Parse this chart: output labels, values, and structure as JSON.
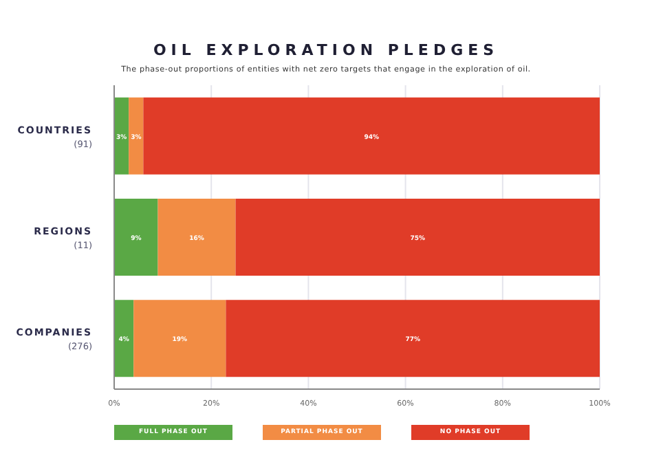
{
  "chart_data": {
    "type": "bar",
    "orientation": "horizontal",
    "stacked": true,
    "title": "OIL EXPLORATION PLEDGES",
    "subtitle": "The phase-out proportions of entities with net zero targets that engage in the exploration of oil.",
    "categories": [
      "COUNTRIES (91)",
      "REGIONS (11)",
      "COMPANIES (276)"
    ],
    "series": [
      {
        "name": "FULL PHASE OUT",
        "color": "#5aa845",
        "values": [
          3,
          9,
          4
        ],
        "value_labels": [
          "3%",
          "9%",
          "4%"
        ]
      },
      {
        "name": "PARTIAL PHASE OUT",
        "color": "#f28c44",
        "values": [
          3,
          16,
          19
        ],
        "value_labels": [
          "3%",
          "16%",
          "19%"
        ]
      },
      {
        "name": "NO PHASE OUT",
        "color": "#e03c28",
        "values": [
          94,
          75,
          77
        ],
        "value_labels": [
          "94%",
          "75%",
          "77%"
        ]
      }
    ],
    "xlim": [
      0,
      100
    ],
    "xticks": [
      {
        "value": 0,
        "label": "0%"
      },
      {
        "value": 20,
        "label": "20%"
      },
      {
        "value": 40,
        "label": "40%"
      },
      {
        "value": 60,
        "label": "60%"
      },
      {
        "value": 80,
        "label": "80%"
      },
      {
        "value": 100,
        "label": "100%"
      }
    ],
    "grid": "x",
    "legend": "bottom"
  }
}
